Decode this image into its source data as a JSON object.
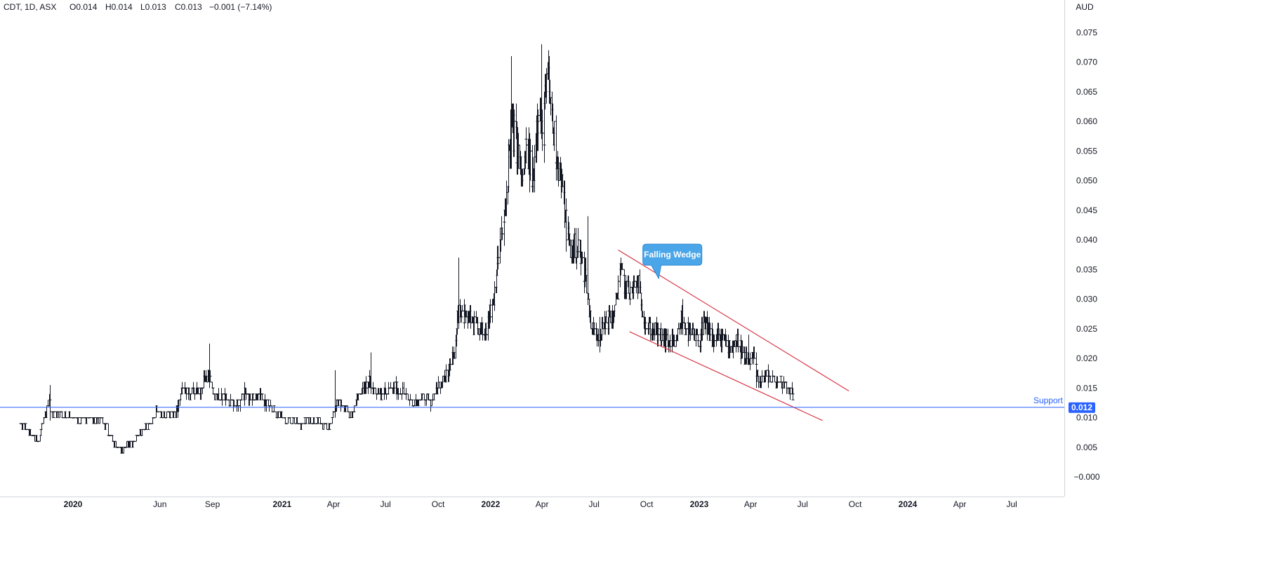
{
  "header": {
    "symbol": "CDT, 1D, ASX",
    "open": "O0.014",
    "high": "H0.014",
    "low": "L0.013",
    "close": "C0.013",
    "change": "−0.001 (−7.14%)"
  },
  "currency": "AUD",
  "chart_data": {
    "type": "ohlc",
    "y_ticks": [
      "0.075",
      "0.070",
      "0.065",
      "0.060",
      "0.055",
      "0.050",
      "0.045",
      "0.040",
      "0.035",
      "0.030",
      "0.025",
      "0.020",
      "0.015",
      "0.010",
      "0.005",
      "−0.000"
    ],
    "x_ticks": [
      "2020",
      "Jun",
      "Sep",
      "2021",
      "Apr",
      "Jul",
      "Oct",
      "2022",
      "Apr",
      "Jul",
      "Oct",
      "2023",
      "Apr",
      "Jul",
      "Oct",
      "2024",
      "Apr",
      "Jul"
    ],
    "x_ticks_bold": [
      true,
      false,
      false,
      true,
      false,
      false,
      false,
      true,
      false,
      false,
      false,
      true,
      false,
      false,
      false,
      true,
      false,
      false
    ],
    "x_tick_dates": [
      "2020-01-01",
      "2020-06-01",
      "2020-09-01",
      "2021-01-01",
      "2021-04-01",
      "2021-07-01",
      "2021-10-01",
      "2022-01-01",
      "2022-04-01",
      "2022-07-01",
      "2022-10-01",
      "2023-01-01",
      "2023-04-01",
      "2023-07-01",
      "2023-10-01",
      "2024-01-01",
      "2024-04-01",
      "2024-07-01"
    ],
    "ylim": [
      -0.0002,
      0.0781
    ],
    "series_path": [
      [
        "2019-10-01",
        0.009
      ],
      [
        "2019-10-15",
        0.0075
      ],
      [
        "2019-11-01",
        0.006
      ],
      [
        "2019-11-20",
        0.013
      ],
      [
        "2019-11-25",
        0.011
      ],
      [
        "2019-12-15",
        0.0105
      ],
      [
        "2020-01-10",
        0.0095
      ],
      [
        "2020-02-01",
        0.01
      ],
      [
        "2020-02-20",
        0.0095
      ],
      [
        "2020-03-10",
        0.006
      ],
      [
        "2020-03-25",
        0.0045
      ],
      [
        "2020-04-15",
        0.006
      ],
      [
        "2020-05-01",
        0.008
      ],
      [
        "2020-05-15",
        0.009
      ],
      [
        "2020-05-25",
        0.011
      ],
      [
        "2020-06-10",
        0.01
      ],
      [
        "2020-06-30",
        0.011
      ],
      [
        "2020-07-10",
        0.015
      ],
      [
        "2020-07-25",
        0.014
      ],
      [
        "2020-08-10",
        0.0145
      ],
      [
        "2020-08-25",
        0.018
      ],
      [
        "2020-09-05",
        0.013
      ],
      [
        "2020-09-20",
        0.0135
      ],
      [
        "2020-10-10",
        0.0125
      ],
      [
        "2020-10-25",
        0.014
      ],
      [
        "2020-11-10",
        0.0135
      ],
      [
        "2020-12-01",
        0.013
      ],
      [
        "2020-12-20",
        0.0105
      ],
      [
        "2021-01-15",
        0.0095
      ],
      [
        "2021-02-01",
        0.009
      ],
      [
        "2021-02-20",
        0.0095
      ],
      [
        "2021-03-10",
        0.009
      ],
      [
        "2021-03-25",
        0.0085
      ],
      [
        "2021-04-05",
        0.0125
      ],
      [
        "2021-04-20",
        0.0115
      ],
      [
        "2021-05-01",
        0.0105
      ],
      [
        "2021-05-15",
        0.014
      ],
      [
        "2021-06-01",
        0.016
      ],
      [
        "2021-06-15",
        0.0145
      ],
      [
        "2021-07-01",
        0.014
      ],
      [
        "2021-07-15",
        0.015
      ],
      [
        "2021-08-01",
        0.014
      ],
      [
        "2021-08-20",
        0.0125
      ],
      [
        "2021-09-05",
        0.0135
      ],
      [
        "2021-09-20",
        0.013
      ],
      [
        "2021-10-01",
        0.015
      ],
      [
        "2021-10-15",
        0.017
      ],
      [
        "2021-10-28",
        0.02
      ],
      [
        "2021-11-05",
        0.029
      ],
      [
        "2021-11-20",
        0.027
      ],
      [
        "2021-12-05",
        0.025
      ],
      [
        "2021-12-20",
        0.024
      ],
      [
        "2022-01-05",
        0.03
      ],
      [
        "2022-01-15",
        0.038
      ],
      [
        "2022-01-25",
        0.043
      ],
      [
        "2022-02-05",
        0.06
      ],
      [
        "2022-02-15",
        0.056
      ],
      [
        "2022-02-25",
        0.05
      ],
      [
        "2022-03-05",
        0.056
      ],
      [
        "2022-03-15",
        0.05
      ],
      [
        "2022-03-25",
        0.064
      ],
      [
        "2022-04-01",
        0.056
      ],
      [
        "2022-04-10",
        0.068
      ],
      [
        "2022-04-20",
        0.058
      ],
      [
        "2022-05-01",
        0.052
      ],
      [
        "2022-05-10",
        0.045
      ],
      [
        "2022-05-20",
        0.038
      ],
      [
        "2022-06-01",
        0.039
      ],
      [
        "2022-06-15",
        0.034
      ],
      [
        "2022-06-25",
        0.026
      ],
      [
        "2022-07-05",
        0.024
      ],
      [
        "2022-07-15",
        0.025
      ],
      [
        "2022-07-25",
        0.027
      ],
      [
        "2022-08-05",
        0.0275
      ],
      [
        "2022-08-15",
        0.035
      ],
      [
        "2022-08-25",
        0.032
      ],
      [
        "2022-09-05",
        0.031
      ],
      [
        "2022-09-15",
        0.033
      ],
      [
        "2022-09-25",
        0.027
      ],
      [
        "2022-10-05",
        0.025
      ],
      [
        "2022-10-20",
        0.024
      ],
      [
        "2022-11-05",
        0.023
      ],
      [
        "2022-11-20",
        0.022
      ],
      [
        "2022-12-01",
        0.027
      ],
      [
        "2022-12-15",
        0.024
      ],
      [
        "2023-01-01",
        0.023
      ],
      [
        "2023-01-10",
        0.026
      ],
      [
        "2023-01-25",
        0.023
      ],
      [
        "2023-02-10",
        0.0235
      ],
      [
        "2023-02-25",
        0.022
      ],
      [
        "2023-03-10",
        0.023
      ],
      [
        "2023-03-25",
        0.019
      ],
      [
        "2023-04-05",
        0.02
      ],
      [
        "2023-04-15",
        0.016
      ],
      [
        "2023-04-25",
        0.017
      ],
      [
        "2023-05-10",
        0.0165
      ],
      [
        "2023-05-25",
        0.016
      ],
      [
        "2023-06-05",
        0.0155
      ],
      [
        "2023-06-14",
        0.013
      ]
    ],
    "spikes": [
      [
        "2019-11-22",
        0.0095,
        0.0155
      ],
      [
        "2020-08-26",
        0.015,
        0.0225
      ],
      [
        "2021-04-03",
        0.01,
        0.018
      ],
      [
        "2021-06-05",
        0.014,
        0.021
      ],
      [
        "2021-11-06",
        0.027,
        0.037
      ],
      [
        "2022-02-06",
        0.052,
        0.071
      ],
      [
        "2022-03-30",
        0.058,
        0.073
      ],
      [
        "2022-06-20",
        0.031,
        0.044
      ],
      [
        "2022-07-10",
        0.021,
        0.027
      ],
      [
        "2022-12-02",
        0.024,
        0.03
      ],
      [
        "2023-01-15",
        0.023,
        0.028
      ],
      [
        "2023-03-28",
        0.019,
        0.024
      ],
      [
        "2023-04-10",
        0.015,
        0.021
      ]
    ],
    "wedge_upper": [
      [
        "2022-08-12",
        0.0383
      ],
      [
        "2023-09-20",
        0.0145
      ]
    ],
    "wedge_lower": [
      [
        "2022-09-01",
        0.0245
      ],
      [
        "2023-08-05",
        0.0095
      ]
    ],
    "support_level": 0.0118,
    "support_label": "Support",
    "last_price_label": "0.012",
    "annotation": "Falling Wedge",
    "annotation_date": "2022-11-15",
    "annotation_price": 0.0375,
    "annotation_pointer": [
      "2022-10-22",
      0.0335
    ],
    "colors": {
      "bars": "#131722",
      "wedge": "#d93b4a",
      "support": "#2962ff",
      "price_tag": "#2962ff",
      "callout": "#4aa6e8",
      "callout_border": "#2a86d1",
      "axis_line": "#d1d4dc"
    }
  }
}
